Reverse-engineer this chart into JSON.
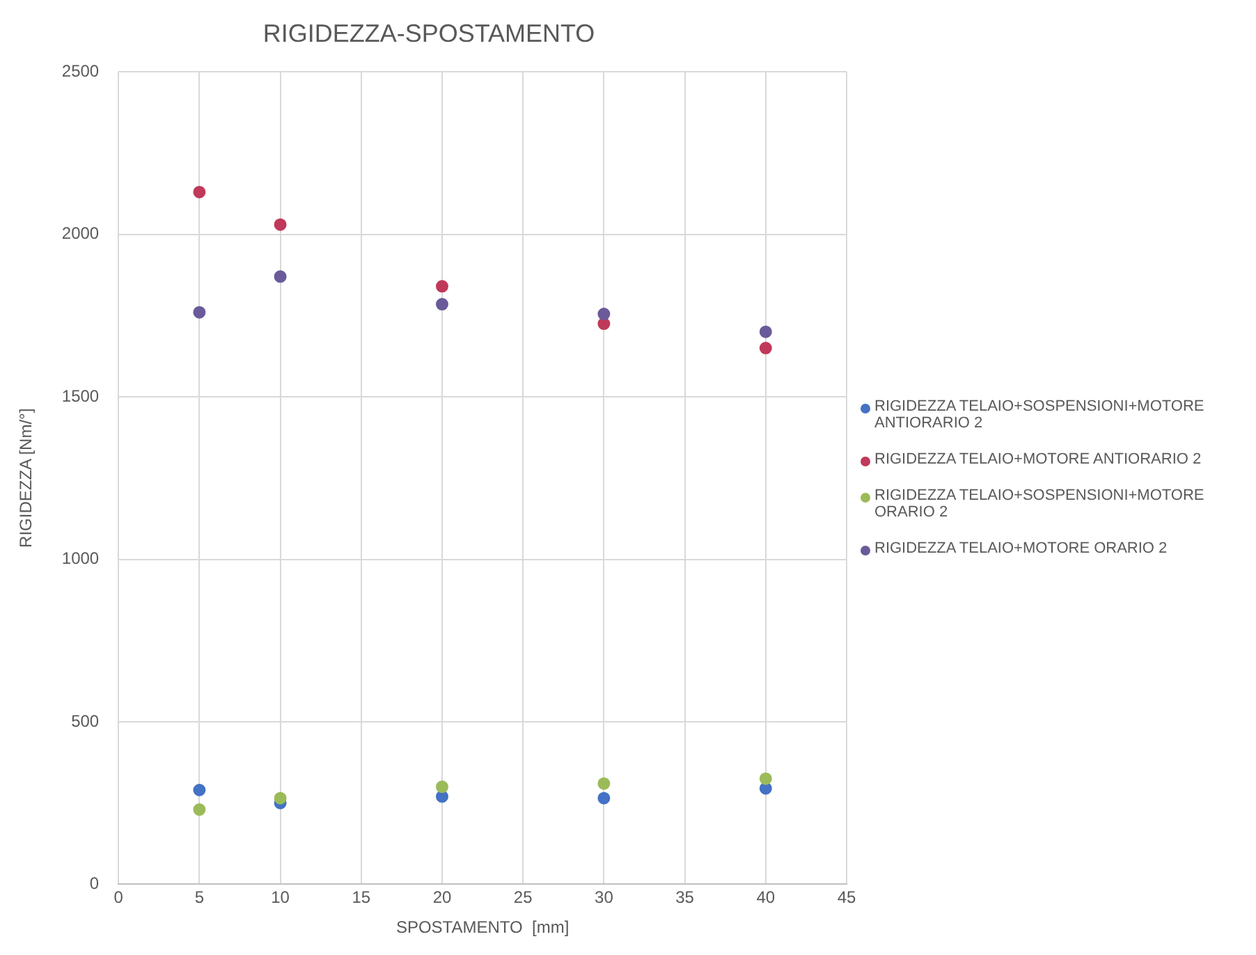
{
  "chart_data": {
    "type": "scatter",
    "title": "RIGIDEZZA-SPOSTAMENTO",
    "xlabel": "SPOSTAMENTO  [mm]",
    "ylabel": "RIGIDEZZA [Nm/°]",
    "x": [
      5,
      10,
      20,
      30,
      40
    ],
    "series": [
      {
        "name": "RIGIDEZZA TELAIO+SOSPENSIONI+MOTORE ANTIORARIO 2",
        "color": "#4472c4",
        "values": [
          290,
          250,
          270,
          265,
          295
        ]
      },
      {
        "name": "RIGIDEZZA TELAIO+MOTORE ANTIORARIO 2",
        "color": "#c0395a",
        "values": [
          2130,
          2030,
          1840,
          1725,
          1650
        ]
      },
      {
        "name": "RIGIDEZZA TELAIO+SOSPENSIONI+MOTORE ORARIO 2",
        "color": "#9bbb59",
        "values": [
          230,
          265,
          300,
          310,
          325
        ]
      },
      {
        "name": "RIGIDEZZA TELAIO+MOTORE ORARIO 2",
        "color": "#6a5a9a",
        "values": [
          1760,
          1870,
          1785,
          1755,
          1700
        ]
      }
    ],
    "xlim": [
      0,
      45
    ],
    "xticks": [
      0,
      5,
      10,
      15,
      20,
      25,
      30,
      35,
      40,
      45
    ],
    "ylim": [
      0,
      2500
    ],
    "yticks": [
      0,
      500,
      1000,
      1500,
      2000,
      2500
    ],
    "grid": true,
    "legend": "right",
    "marker": "circle"
  }
}
